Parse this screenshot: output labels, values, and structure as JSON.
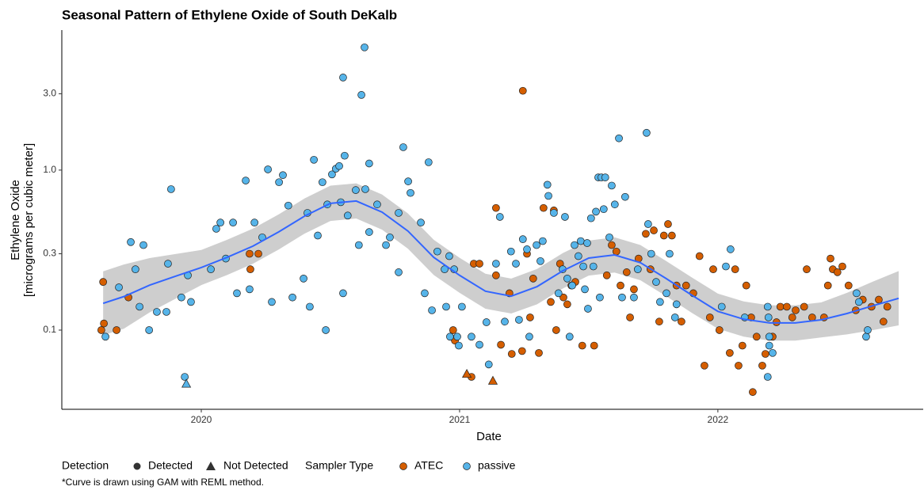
{
  "chart_data": {
    "type": "scatter",
    "title": "Seasonal Pattern of Ethylene Oxide of South DeKalb",
    "x_label": "Date",
    "y_label": [
      "Ethylene Oxide",
      "[micrograms per cubic meter]"
    ],
    "footnote": "*Curve is drawn using GAM with REML method.",
    "log_y": true,
    "grid": false,
    "xlim": [
      2019.46,
      2022.795
    ],
    "xticks": [
      2020,
      2021,
      2022
    ],
    "ylim": [
      0.032,
      7.5
    ],
    "yticks": [
      0.1,
      0.3,
      {
        "value": 1,
        "label": "1.0"
      },
      {
        "value": 3,
        "label": "3.0"
      }
    ],
    "legend": {
      "detection_title": "Detection",
      "detection_items": [
        "Detected",
        "Not Detected"
      ],
      "series_title": "Sampler Type"
    },
    "series": [
      {
        "name": "ATEC",
        "color": "#d55e00",
        "x": [
          2019.613,
          2019.62,
          2019.623,
          2019.672,
          2019.718,
          2020.187,
          2020.221,
          2020.19,
          2021.055,
          2021.077,
          2020.975,
          2020.982,
          2021.141,
          2021.141,
          2021.16,
          2021.193,
          2021.202,
          2021.242,
          2021.245,
          2021.261,
          2021.273,
          2021.285,
          2021.307,
          2021.325,
          2021.353,
          2021.365,
          2021.374,
          2021.389,
          2021.402,
          2021.417,
          2021.433,
          2021.448,
          2021.475,
          2021.521,
          2021.57,
          2021.589,
          2021.607,
          2021.623,
          2021.647,
          2021.66,
          2021.675,
          2021.693,
          2021.721,
          2021.739,
          2021.752,
          2021.773,
          2021.791,
          2021.807,
          2021.822,
          2021.84,
          2021.859,
          2021.877,
          2021.905,
          2021.929,
          2021.948,
          2021.969,
          2021.982,
          2022.006,
          2022.046,
          2022.067,
          2022.08,
          2022.095,
          2022.11,
          2022.129,
          2022.15,
          2022.172,
          2022.184,
          2022.212,
          2022.227,
          2022.242,
          2022.267,
          2022.288,
          2022.301,
          2022.334,
          2022.344,
          2022.365,
          2022.411,
          2022.426,
          2022.445,
          2022.463,
          2022.482,
          2022.506,
          2022.534,
          2022.561,
          2022.595,
          2022.623,
          2022.641,
          2022.656,
          2022.135,
          2022.436,
          2021.046
        ],
        "values": [
          0.1,
          0.2,
          0.11,
          0.1,
          0.16,
          0.3,
          0.3,
          0.24,
          0.26,
          0.26,
          0.1,
          0.086,
          0.22,
          0.58,
          0.081,
          0.17,
          0.071,
          0.074,
          3.13,
          0.3,
          0.12,
          0.21,
          0.072,
          0.58,
          0.15,
          0.56,
          0.1,
          0.26,
          0.16,
          0.145,
          0.19,
          0.2,
          0.08,
          0.08,
          0.22,
          0.34,
          0.31,
          0.19,
          0.23,
          0.12,
          0.18,
          0.28,
          0.4,
          0.24,
          0.42,
          0.113,
          0.39,
          0.46,
          0.39,
          0.19,
          0.113,
          0.19,
          0.17,
          0.29,
          0.06,
          0.12,
          0.24,
          0.1,
          0.072,
          0.24,
          0.06,
          0.08,
          0.19,
          0.12,
          0.091,
          0.06,
          0.071,
          0.091,
          0.112,
          0.14,
          0.14,
          0.12,
          0.133,
          0.14,
          0.24,
          0.12,
          0.12,
          0.19,
          0.24,
          0.23,
          0.25,
          0.19,
          0.133,
          0.155,
          0.14,
          0.155,
          0.113,
          0.14,
          0.041,
          0.28,
          0.051
        ],
        "not_detected_x": [
          2021.028,
          2021.129
        ],
        "not_detected_values": [
          0.053,
          0.048
        ]
      },
      {
        "name": "passive",
        "color": "#56b4e9",
        "x": [
          2019.629,
          2019.681,
          2019.727,
          2019.745,
          2019.761,
          2019.776,
          2019.798,
          2019.828,
          2019.865,
          2019.871,
          2019.883,
          2019.923,
          2019.948,
          2019.96,
          2019.936,
          2020.037,
          2020.058,
          2020.074,
          2020.095,
          2020.123,
          2020.138,
          2020.172,
          2020.187,
          2020.206,
          2020.236,
          2020.258,
          2020.273,
          2020.301,
          2020.316,
          2020.337,
          2020.353,
          2020.396,
          2020.411,
          2020.42,
          2020.436,
          2020.451,
          2020.469,
          2020.482,
          2020.488,
          2020.506,
          2020.521,
          2020.534,
          2020.54,
          2020.549,
          2020.555,
          2020.549,
          2020.62,
          2020.632,
          2020.567,
          2020.598,
          2020.61,
          2020.635,
          2020.65,
          2020.65,
          2020.681,
          2020.715,
          2020.73,
          2020.764,
          2020.764,
          2020.782,
          2020.801,
          2020.81,
          2020.85,
          2020.865,
          2020.88,
          2020.893,
          2020.914,
          2020.942,
          2020.948,
          2020.96,
          2020.963,
          2020.979,
          2020.991,
          2020.997,
          2021.009,
          2021.046,
          2021.077,
          2021.104,
          2021.113,
          2021.141,
          2021.156,
          2021.175,
          2021.199,
          2021.218,
          2021.23,
          2021.245,
          2021.261,
          2021.27,
          2021.298,
          2021.313,
          2021.322,
          2021.34,
          2021.344,
          2021.365,
          2021.383,
          2021.399,
          2021.408,
          2021.417,
          2021.426,
          2021.436,
          2021.445,
          2021.46,
          2021.469,
          2021.479,
          2021.485,
          2021.494,
          2021.497,
          2021.509,
          2021.518,
          2021.528,
          2021.537,
          2021.543,
          2021.549,
          2021.558,
          2021.564,
          2021.58,
          2021.589,
          2021.601,
          2021.617,
          2021.629,
          2021.641,
          2021.675,
          2021.69,
          2021.724,
          2021.73,
          2021.742,
          2021.761,
          2021.776,
          2021.801,
          2021.813,
          2021.834,
          2021.84,
          2022.015,
          2022.031,
          2022.049,
          2022.104,
          2022.193,
          2022.196,
          2022.199,
          2022.199,
          2022.212,
          2022.193,
          2022.537,
          2022.546,
          2022.574,
          2022.58
        ],
        "values": [
          0.091,
          0.185,
          0.355,
          0.24,
          0.14,
          0.34,
          0.1,
          0.13,
          0.13,
          0.26,
          0.76,
          0.16,
          0.22,
          0.15,
          0.051,
          0.24,
          0.43,
          0.47,
          0.28,
          0.47,
          0.17,
          0.86,
          0.18,
          0.47,
          0.38,
          1.01,
          0.15,
          0.84,
          0.93,
          0.6,
          0.16,
          0.21,
          0.54,
          0.14,
          1.16,
          0.39,
          0.84,
          0.1,
          0.61,
          0.94,
          1.02,
          1.06,
          0.63,
          0.17,
          1.23,
          3.79,
          2.95,
          5.85,
          0.52,
          0.75,
          0.34,
          0.76,
          1.1,
          0.41,
          0.61,
          0.34,
          0.38,
          0.54,
          0.23,
          1.39,
          0.85,
          0.72,
          0.47,
          0.17,
          1.12,
          0.133,
          0.31,
          0.24,
          0.14,
          0.29,
          0.091,
          0.24,
          0.091,
          0.08,
          0.14,
          0.091,
          0.081,
          0.112,
          0.061,
          0.26,
          0.51,
          0.113,
          0.31,
          0.26,
          0.116,
          0.37,
          0.32,
          0.091,
          0.34,
          0.27,
          0.36,
          0.81,
          0.69,
          0.54,
          0.17,
          0.24,
          0.51,
          0.21,
          0.091,
          0.19,
          0.34,
          0.29,
          0.36,
          0.25,
          0.18,
          0.35,
          0.136,
          0.5,
          0.25,
          0.55,
          0.9,
          0.16,
          0.9,
          0.57,
          0.9,
          0.38,
          0.8,
          0.61,
          1.58,
          0.16,
          0.68,
          0.16,
          0.24,
          1.71,
          0.46,
          0.3,
          0.2,
          0.15,
          0.17,
          0.3,
          0.12,
          0.145,
          0.14,
          0.25,
          0.32,
          0.12,
          0.14,
          0.12,
          0.091,
          0.08,
          0.072,
          0.051,
          0.17,
          0.15,
          0.091,
          0.1
        ],
        "not_detected_x": [
          2019.942
        ],
        "not_detected_values": [
          0.046
        ]
      }
    ],
    "fit": {
      "color": "#3366ff",
      "band_color": "#bdbdbd",
      "x": [
        2019.62,
        2019.7,
        2019.8,
        2019.9,
        2020.0,
        2020.1,
        2020.2,
        2020.3,
        2020.4,
        2020.5,
        2020.6,
        2020.7,
        2020.8,
        2020.9,
        2021.0,
        2021.1,
        2021.2,
        2021.3,
        2021.4,
        2021.5,
        2021.6,
        2021.7,
        2021.8,
        2021.9,
        2022.0,
        2022.1,
        2022.2,
        2022.3,
        2022.4,
        2022.5,
        2022.6,
        2022.7
      ],
      "values": [
        0.147,
        0.162,
        0.191,
        0.217,
        0.246,
        0.285,
        0.335,
        0.411,
        0.516,
        0.62,
        0.641,
        0.546,
        0.416,
        0.285,
        0.22,
        0.175,
        0.163,
        0.187,
        0.235,
        0.282,
        0.295,
        0.264,
        0.21,
        0.165,
        0.131,
        0.117,
        0.111,
        0.111,
        0.116,
        0.127,
        0.142,
        0.158
      ],
      "lower": [
        0.093,
        0.102,
        0.129,
        0.157,
        0.191,
        0.221,
        0.26,
        0.319,
        0.401,
        0.481,
        0.498,
        0.424,
        0.323,
        0.221,
        0.171,
        0.136,
        0.127,
        0.145,
        0.182,
        0.219,
        0.229,
        0.205,
        0.163,
        0.128,
        0.102,
        0.091,
        0.086,
        0.086,
        0.09,
        0.094,
        0.1,
        0.107
      ],
      "upper": [
        0.233,
        0.257,
        0.282,
        0.299,
        0.317,
        0.367,
        0.431,
        0.529,
        0.665,
        0.799,
        0.826,
        0.703,
        0.536,
        0.367,
        0.283,
        0.225,
        0.21,
        0.241,
        0.303,
        0.363,
        0.38,
        0.34,
        0.27,
        0.213,
        0.169,
        0.151,
        0.143,
        0.143,
        0.149,
        0.171,
        0.201,
        0.234
      ]
    }
  }
}
